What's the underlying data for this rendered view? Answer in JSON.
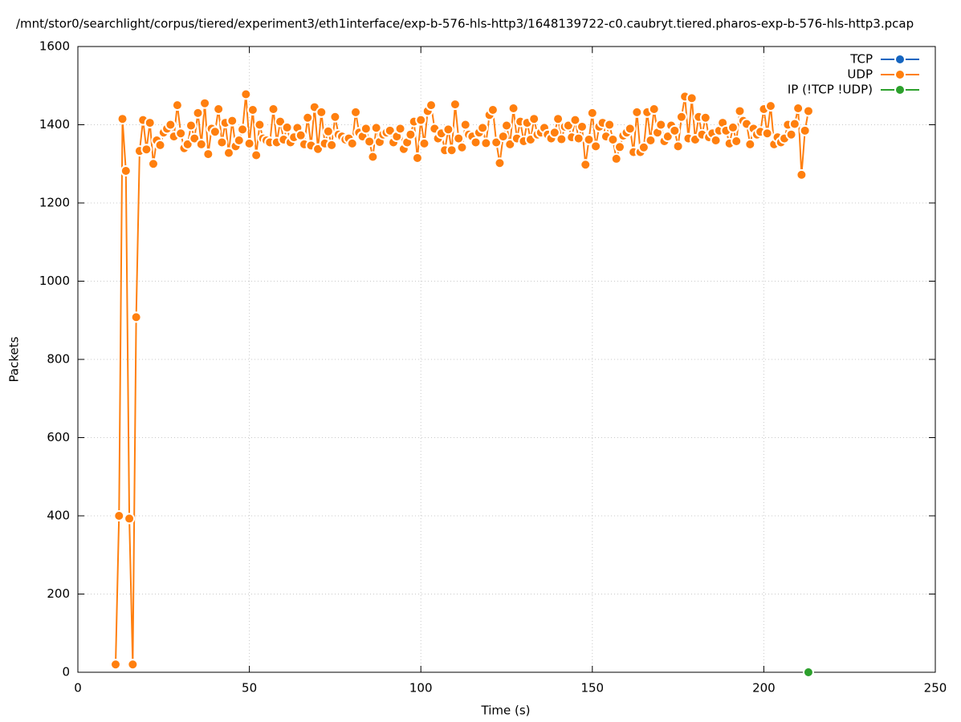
{
  "chart_data": {
    "type": "line",
    "title": "/mnt/stor0/searchlight/corpus/tiered/experiment3/eth1interface/exp-b-576-hls-http3/1648139722-c0.caubryt.tiered.pharos-exp-b-576-hls-http3.pcap",
    "xlabel": "Time (s)",
    "ylabel": "Packets",
    "xlim": [
      0,
      250
    ],
    "xticks": [
      0,
      50,
      100,
      150,
      200,
      250
    ],
    "ylim": [
      0,
      1600
    ],
    "yticks": [
      0,
      200,
      400,
      600,
      800,
      1000,
      1200,
      1400,
      1600
    ],
    "grid": true,
    "legend": "top-right",
    "series": [
      {
        "name": "TCP",
        "color": "#1565c0",
        "x": [],
        "values": []
      },
      {
        "name": "UDP",
        "color": "#ff7f0e",
        "x": [
          11,
          12,
          13,
          14,
          15,
          16,
          17,
          18,
          19,
          20,
          21,
          22,
          23,
          24,
          25,
          26,
          27,
          28,
          29,
          30,
          31,
          32,
          33,
          34,
          35,
          36,
          37,
          38,
          39,
          40,
          41,
          42,
          43,
          44,
          45,
          46,
          47,
          48,
          49,
          50,
          51,
          52,
          53,
          54,
          55,
          56,
          57,
          58,
          59,
          60,
          61,
          62,
          63,
          64,
          65,
          66,
          67,
          68,
          69,
          70,
          71,
          72,
          73,
          74,
          75,
          76,
          77,
          78,
          79,
          80,
          81,
          82,
          83,
          84,
          85,
          86,
          87,
          88,
          89,
          90,
          91,
          92,
          93,
          94,
          95,
          96,
          97,
          98,
          99,
          100,
          101,
          102,
          103,
          104,
          105,
          106,
          107,
          108,
          109,
          110,
          111,
          112,
          113,
          114,
          115,
          116,
          117,
          118,
          119,
          120,
          121,
          122,
          123,
          124,
          125,
          126,
          127,
          128,
          129,
          130,
          131,
          132,
          133,
          134,
          135,
          136,
          137,
          138,
          139,
          140,
          141,
          142,
          143,
          144,
          145,
          146,
          147,
          148,
          149,
          150,
          151,
          152,
          153,
          154,
          155,
          156,
          157,
          158,
          159,
          160,
          161,
          162,
          163,
          164,
          165,
          166,
          167,
          168,
          169,
          170,
          171,
          172,
          173,
          174,
          175,
          176,
          177,
          178,
          179,
          180,
          181,
          182,
          183,
          184,
          185,
          186,
          187,
          188,
          189,
          190,
          191,
          192,
          193,
          194,
          195,
          196,
          197,
          198,
          199,
          200,
          201,
          202,
          203,
          204,
          205,
          206,
          207,
          208,
          209,
          210,
          211,
          212,
          213
        ],
        "values": [
          20,
          400,
          1415,
          1282,
          393,
          20,
          908,
          1333,
          1412,
          1337,
          1405,
          1300,
          1360,
          1348,
          1380,
          1390,
          1400,
          1370,
          1450,
          1378,
          1340,
          1350,
          1398,
          1365,
          1430,
          1350,
          1455,
          1325,
          1390,
          1382,
          1440,
          1355,
          1405,
          1328,
          1410,
          1345,
          1360,
          1388,
          1478,
          1352,
          1438,
          1322,
          1400,
          1365,
          1360,
          1355,
          1440,
          1355,
          1408,
          1362,
          1393,
          1355,
          1368,
          1392,
          1373,
          1350,
          1418,
          1347,
          1445,
          1338,
          1432,
          1352,
          1383,
          1348,
          1420,
          1375,
          1370,
          1362,
          1365,
          1352,
          1432,
          1380,
          1370,
          1390,
          1357,
          1318,
          1392,
          1356,
          1375,
          1380,
          1385,
          1355,
          1370,
          1390,
          1338,
          1355,
          1375,
          1408,
          1315,
          1412,
          1352,
          1435,
          1450,
          1390,
          1365,
          1378,
          1335,
          1388,
          1335,
          1452,
          1365,
          1342,
          1400,
          1375,
          1370,
          1355,
          1380,
          1392,
          1353,
          1425,
          1438,
          1355,
          1302,
          1370,
          1398,
          1350,
          1442,
          1365,
          1408,
          1358,
          1405,
          1362,
          1415,
          1375,
          1380,
          1392,
          1375,
          1365,
          1380,
          1415,
          1363,
          1395,
          1398,
          1368,
          1412,
          1365,
          1395,
          1298,
          1362,
          1430,
          1345,
          1395,
          1405,
          1370,
          1400,
          1362,
          1313,
          1343,
          1372,
          1380,
          1390,
          1330,
          1432,
          1330,
          1342,
          1432,
          1360,
          1440,
          1380,
          1400,
          1358,
          1370,
          1398,
          1385,
          1345,
          1420,
          1472,
          1365,
          1468,
          1362,
          1420,
          1375,
          1418,
          1368,
          1378,
          1360,
          1385,
          1405,
          1385,
          1352,
          1393,
          1358,
          1435,
          1410,
          1402,
          1350,
          1390,
          1375,
          1382,
          1440,
          1378,
          1448,
          1350,
          1368,
          1355,
          1365,
          1400,
          1375,
          1402,
          1442,
          1272,
          1385,
          1435
        ]
      },
      {
        "name": "IP (!TCP  !UDP)",
        "color": "#2ca02c",
        "x": [
          213
        ],
        "values": [
          0
        ]
      }
    ]
  }
}
